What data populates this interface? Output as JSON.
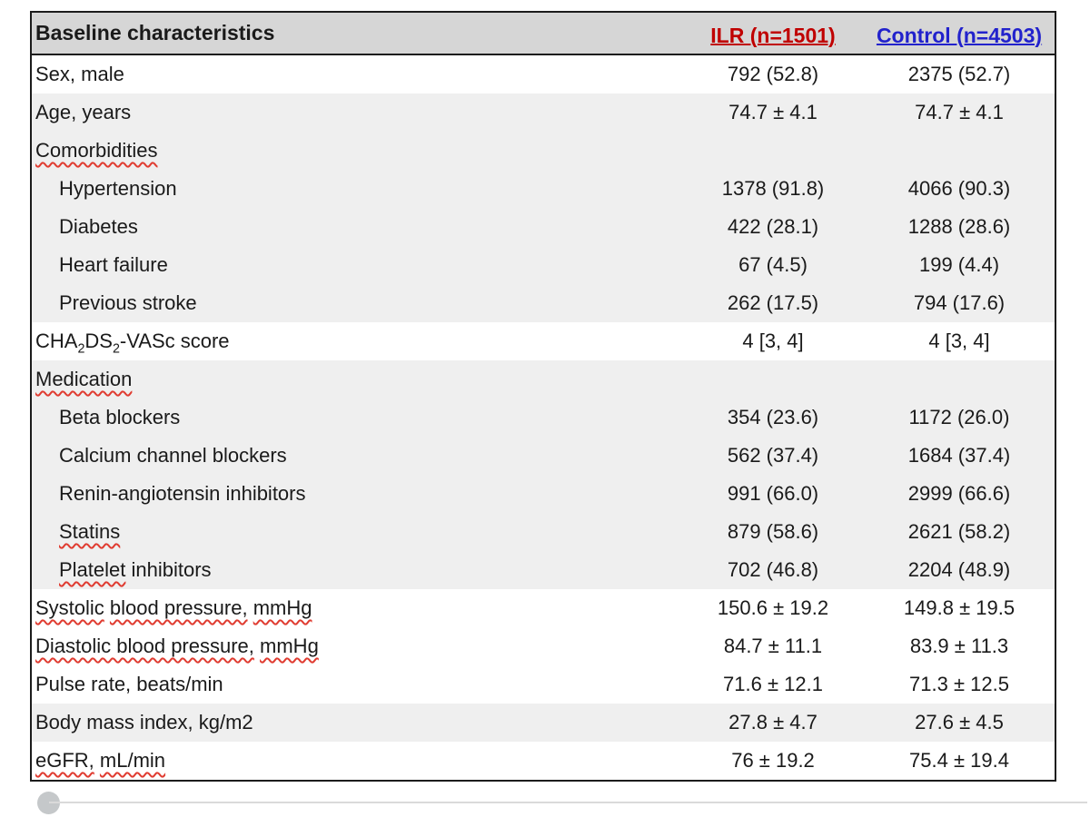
{
  "header": {
    "title": "Baseline characteristics",
    "ilr_label": "ILR (n=1501)",
    "control_label": "Control (n=4503)"
  },
  "colors": {
    "ilr_accent": "#c00000",
    "control_accent": "#2222cc",
    "header_bg": "#d6d6d6",
    "row_shade": "#efefef",
    "border": "#1c1c1c",
    "squiggle": "#e03c31",
    "footer_dot": "#c5c8ca",
    "footer_line": "#dadada"
  },
  "rows": [
    {
      "label": [
        {
          "t": "Sex, male"
        }
      ],
      "ilr": "792 (52.8)",
      "control": "2375 (52.7)",
      "shade": false,
      "indent": false
    },
    {
      "label": [
        {
          "t": "Age, years"
        }
      ],
      "ilr": "74.7 ± 4.1",
      "control": "74.7 ± 4.1",
      "shade": true,
      "indent": false
    },
    {
      "label": [
        {
          "t": "Comorbidities",
          "sq": true
        }
      ],
      "ilr": "",
      "control": "",
      "shade": true,
      "indent": false
    },
    {
      "label": [
        {
          "t": "Hypertension"
        }
      ],
      "ilr": "1378 (91.8)",
      "control": "4066 (90.3)",
      "shade": true,
      "indent": true
    },
    {
      "label": [
        {
          "t": "Diabetes"
        }
      ],
      "ilr": "422 (28.1)",
      "control": "1288 (28.6)",
      "shade": true,
      "indent": true
    },
    {
      "label": [
        {
          "t": "Heart failure"
        }
      ],
      "ilr": "67 (4.5)",
      "control": "199 (4.4)",
      "shade": true,
      "indent": true
    },
    {
      "label": [
        {
          "t": "Previous stroke"
        }
      ],
      "ilr": "262 (17.5)",
      "control": "794 (17.6)",
      "shade": true,
      "indent": true
    },
    {
      "label": [
        {
          "t": "CHA"
        },
        {
          "t": "2",
          "sub": true
        },
        {
          "t": "DS"
        },
        {
          "t": "2",
          "sub": true
        },
        {
          "t": "-VASc score"
        }
      ],
      "ilr": "4 [3, 4]",
      "control": "4 [3, 4]",
      "shade": false,
      "indent": false
    },
    {
      "label": [
        {
          "t": "Medication",
          "sq": true
        }
      ],
      "ilr": "",
      "control": "",
      "shade": true,
      "indent": false
    },
    {
      "label": [
        {
          "t": "Beta blockers"
        }
      ],
      "ilr": "354 (23.6)",
      "control": "1172 (26.0)",
      "shade": true,
      "indent": true
    },
    {
      "label": [
        {
          "t": "Calcium channel blockers"
        }
      ],
      "ilr": "562 (37.4)",
      "control": "1684 (37.4)",
      "shade": true,
      "indent": true
    },
    {
      "label": [
        {
          "t": "Renin-angiotensin inhibitors"
        }
      ],
      "ilr": "991 (66.0)",
      "control": "2999 (66.6)",
      "shade": true,
      "indent": true
    },
    {
      "label": [
        {
          "t": "Statins",
          "sq": true
        }
      ],
      "ilr": "879 (58.6)",
      "control": "2621 (58.2)",
      "shade": true,
      "indent": true
    },
    {
      "label": [
        {
          "t": "Platelet",
          "sq": true
        },
        {
          "t": " inhibitors"
        }
      ],
      "ilr": "702 (46.8)",
      "control": "2204 (48.9)",
      "shade": true,
      "indent": true
    },
    {
      "label": [
        {
          "t": "Systolic",
          "sq": true
        },
        {
          "t": " "
        },
        {
          "t": "blood pressure,",
          "sq": true
        },
        {
          "t": " "
        },
        {
          "t": "mmHg",
          "sq": true
        }
      ],
      "ilr": "150.6 ± 19.2",
      "control": "149.8 ± 19.5",
      "shade": false,
      "indent": false
    },
    {
      "label": [
        {
          "t": "Diastolic blood pressure,",
          "sq": true
        },
        {
          "t": " "
        },
        {
          "t": "mmHg",
          "sq": true
        }
      ],
      "ilr": "84.7 ± 11.1",
      "control": "83.9 ± 11.3",
      "shade": false,
      "indent": false
    },
    {
      "label": [
        {
          "t": "Pulse rate, beats/min"
        }
      ],
      "ilr": "71.6 ± 12.1",
      "control": "71.3 ± 12.5",
      "shade": false,
      "indent": false
    },
    {
      "label": [
        {
          "t": "Body mass index, kg/m2"
        }
      ],
      "ilr": "27.8 ± 4.7",
      "control": "27.6 ± 4.5",
      "shade": true,
      "indent": false
    },
    {
      "label": [
        {
          "t": "eGFR,",
          "sq": true
        },
        {
          "t": " "
        },
        {
          "t": "mL/min",
          "sq": true
        }
      ],
      "ilr": "76 ± 19.2",
      "control": "75.4 ± 19.4",
      "shade": false,
      "indent": false
    }
  ]
}
